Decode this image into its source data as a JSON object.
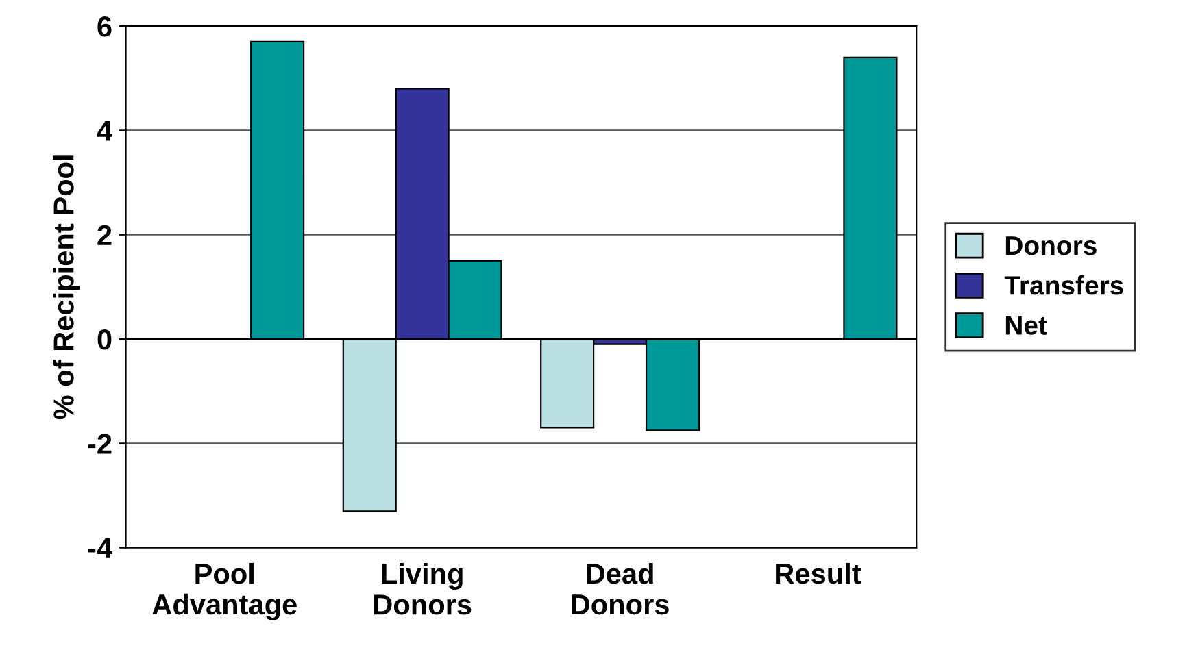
{
  "chart_data": {
    "type": "bar",
    "ylabel": "% of Recipient Pool",
    "categories": [
      "Pool\nAdvantage",
      "Living\nDonors",
      "Dead\nDonors",
      "Result"
    ],
    "series": [
      {
        "name": "Donors",
        "color": "#bbe0e3",
        "values": [
          null,
          -3.3,
          -1.7,
          null
        ]
      },
      {
        "name": "Transfers",
        "color": "#333399",
        "values": [
          null,
          4.8,
          -0.1,
          null
        ]
      },
      {
        "name": "Net",
        "color": "#009999",
        "values": [
          5.7,
          1.5,
          -1.75,
          5.4
        ]
      }
    ],
    "ylim": [
      -4,
      6
    ],
    "yticks": [
      -4,
      -2,
      0,
      2,
      4,
      6
    ],
    "grid": "y",
    "legend": "right"
  }
}
